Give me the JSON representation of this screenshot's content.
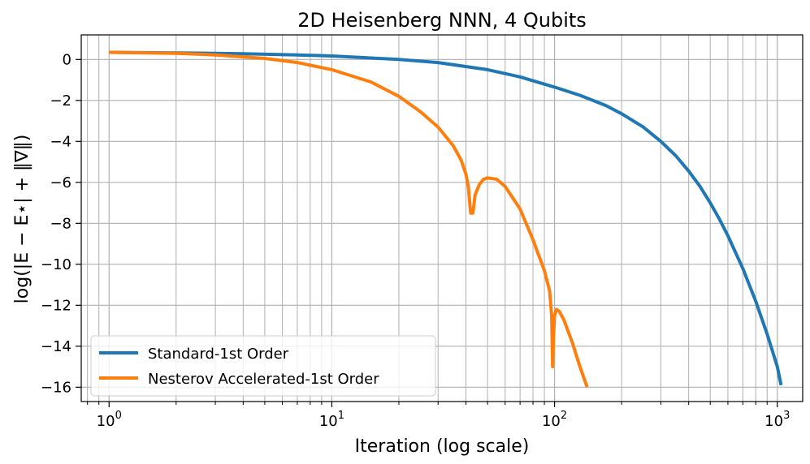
{
  "chart_data": {
    "type": "line",
    "title": "2D Heisenberg NNN, 4 Qubits",
    "xlabel": "Iteration (log scale)",
    "ylabel": "log(|E − E⋆| + ‖∇‖)",
    "x_scale": "log",
    "xlim": [
      0.75,
      1300
    ],
    "ylim": [
      -16.7,
      1.2
    ],
    "x_ticks": [
      {
        "value": 1,
        "base": "10",
        "exp": "0"
      },
      {
        "value": 10,
        "base": "10",
        "exp": "1"
      },
      {
        "value": 100,
        "base": "10",
        "exp": "2"
      },
      {
        "value": 1000,
        "base": "10",
        "exp": "3"
      }
    ],
    "y_ticks": [
      {
        "value": 0,
        "label": "0"
      },
      {
        "value": -2,
        "label": "−2"
      },
      {
        "value": -4,
        "label": "−4"
      },
      {
        "value": -6,
        "label": "−6"
      },
      {
        "value": -8,
        "label": "−8"
      },
      {
        "value": -10,
        "label": "−10"
      },
      {
        "value": -12,
        "label": "−12"
      },
      {
        "value": -14,
        "label": "−14"
      },
      {
        "value": -16,
        "label": "−16"
      }
    ],
    "grid": true,
    "legend_position": "lower-left",
    "series": [
      {
        "name": "Standard-1st Order",
        "color": "#1f77b4",
        "x": [
          1,
          2,
          4,
          7,
          10,
          20,
          30,
          50,
          70,
          100,
          130,
          170,
          200,
          250,
          300,
          350,
          400,
          450,
          500,
          550,
          600,
          700,
          800,
          900,
          1000,
          1040
        ],
        "y": [
          0.35,
          0.32,
          0.28,
          0.22,
          0.17,
          0.0,
          -0.15,
          -0.5,
          -0.85,
          -1.35,
          -1.75,
          -2.25,
          -2.65,
          -3.3,
          -4.0,
          -4.7,
          -5.45,
          -6.2,
          -7.0,
          -7.8,
          -8.6,
          -10.2,
          -11.8,
          -13.4,
          -15.0,
          -15.9
        ]
      },
      {
        "name": "Nesterov Accelerated-1st Order",
        "color": "#ff7f0e",
        "x": [
          1,
          2,
          3,
          5,
          7,
          10,
          15,
          20,
          25,
          30,
          35,
          38,
          40,
          41,
          42,
          43,
          44,
          46,
          48,
          50,
          55,
          60,
          70,
          80,
          90,
          95,
          97,
          98,
          99,
          100,
          102,
          105,
          110,
          120,
          130,
          140
        ],
        "y": [
          0.35,
          0.3,
          0.22,
          0.05,
          -0.15,
          -0.5,
          -1.1,
          -1.8,
          -2.55,
          -3.3,
          -4.2,
          -4.9,
          -5.6,
          -6.2,
          -7.5,
          -7.5,
          -6.6,
          -6.1,
          -5.85,
          -5.78,
          -5.85,
          -6.2,
          -7.3,
          -8.8,
          -10.3,
          -11.3,
          -12.5,
          -15.0,
          -13.5,
          -12.5,
          -12.2,
          -12.3,
          -12.7,
          -13.8,
          -15.0,
          -16.0
        ]
      }
    ]
  }
}
